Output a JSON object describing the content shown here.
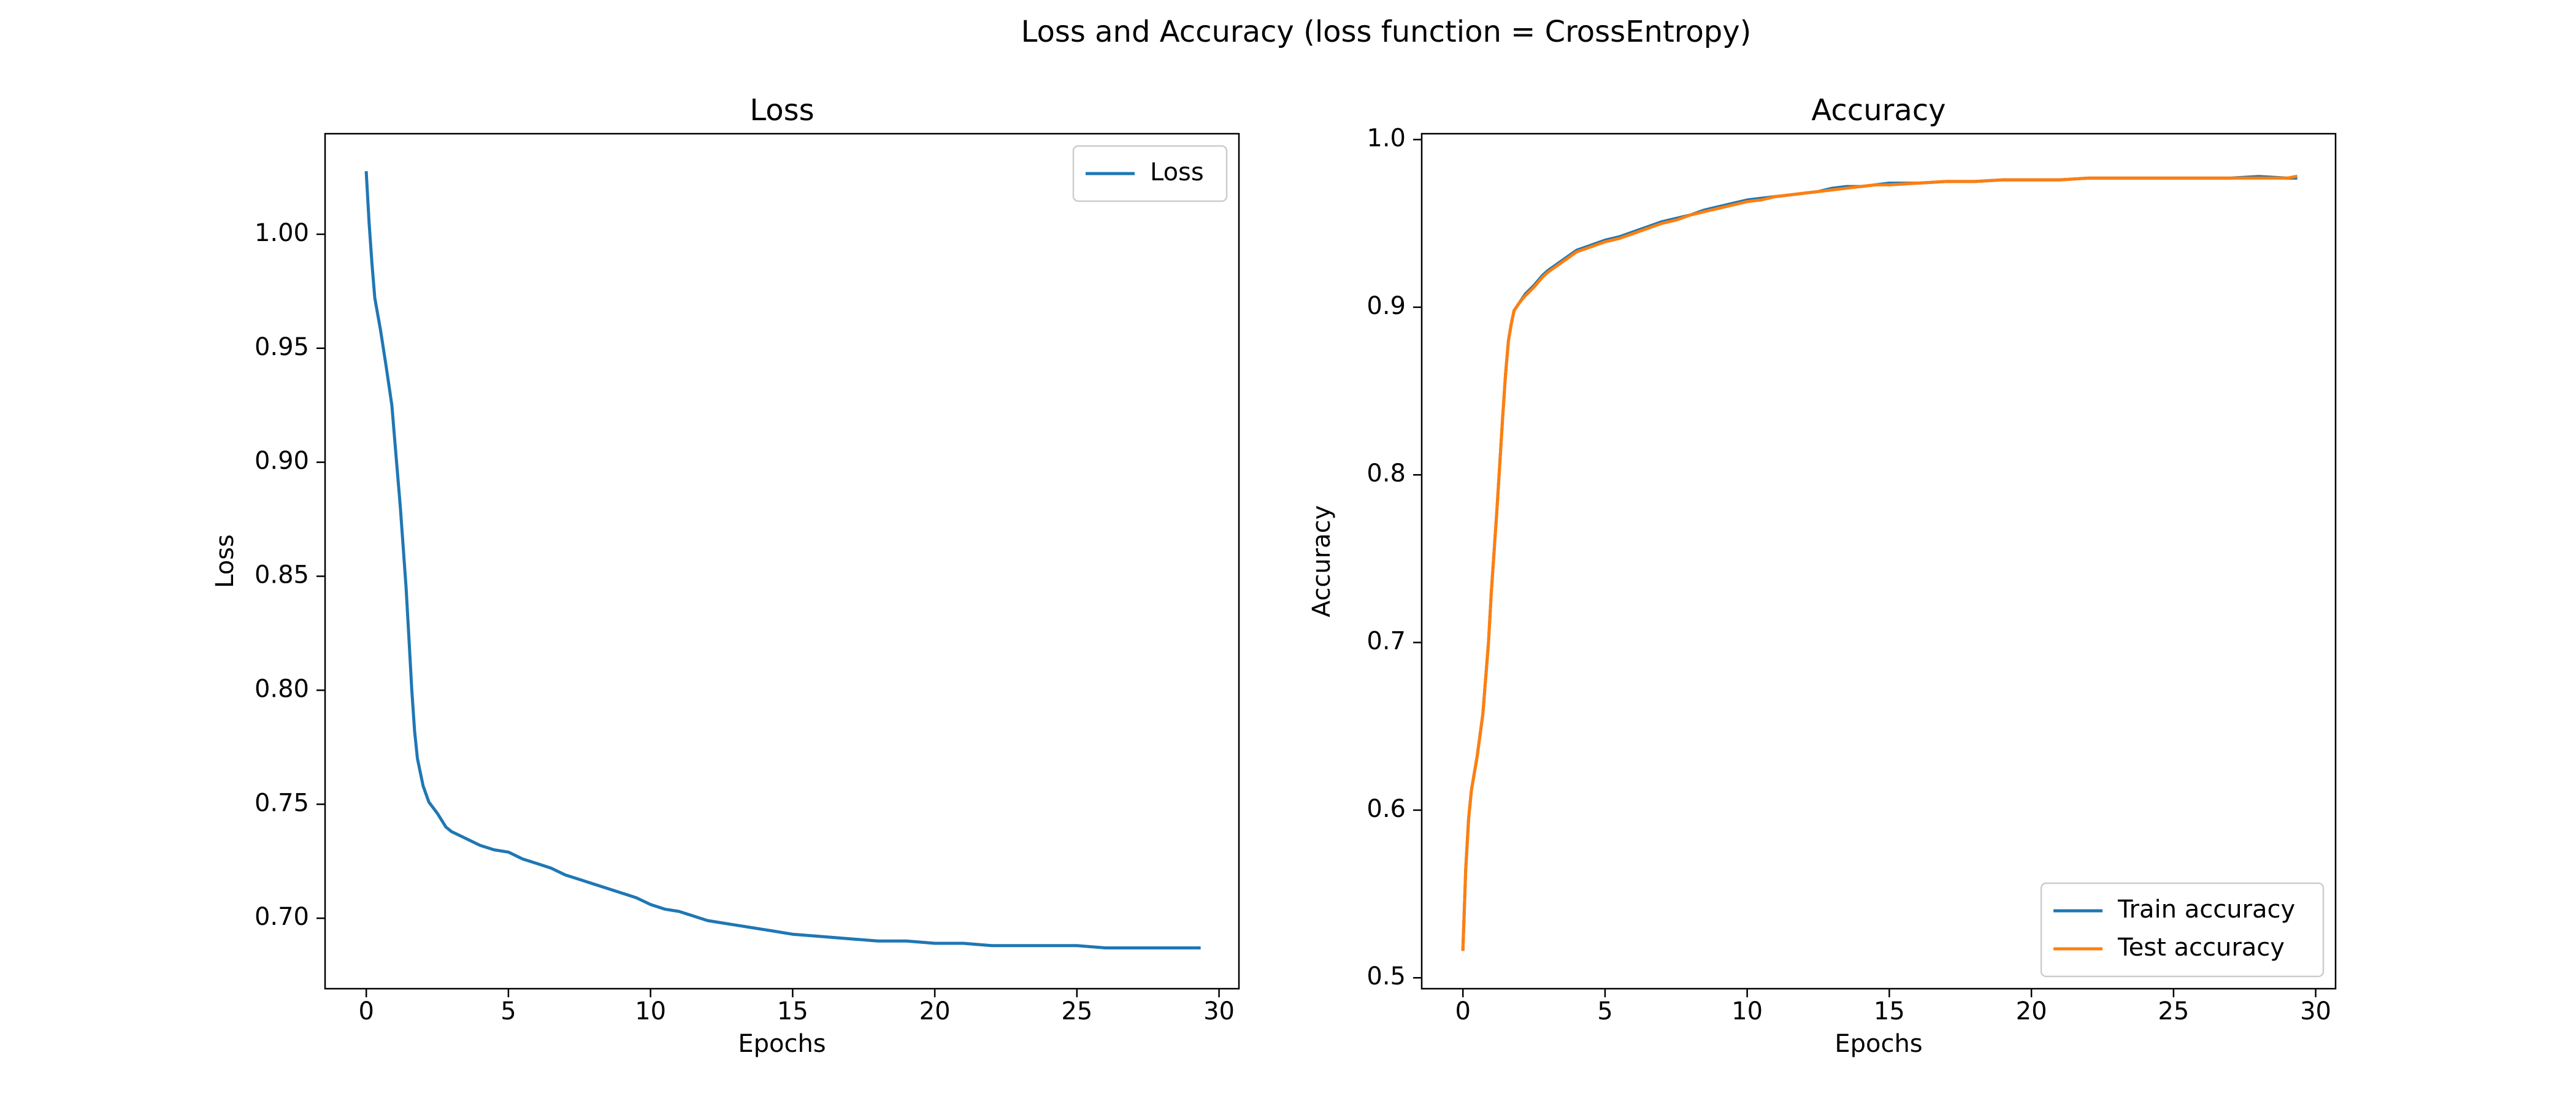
{
  "figure": {
    "suptitle": "Loss and Accuracy (loss function = CrossEntropy)"
  },
  "colors": {
    "series1": "#1f77b4",
    "series2": "#ff7f0e",
    "axes": "#000000",
    "background": "#ffffff"
  },
  "chart_data": [
    {
      "type": "line",
      "title": "Loss",
      "xlabel": "Epochs",
      "ylabel": "Loss",
      "xlim": [
        -1.45,
        30.7
      ],
      "ylim": [
        0.6691,
        1.0441
      ],
      "xticks": [
        0,
        5,
        10,
        15,
        20,
        25,
        30
      ],
      "yticks": [
        0.7,
        0.75,
        0.8,
        0.85,
        0.9,
        0.95,
        1.0
      ],
      "ytick_labels": [
        "0.70",
        "0.75",
        "0.80",
        "0.85",
        "0.90",
        "0.95",
        "1.00"
      ],
      "grid": false,
      "legend": "upper right",
      "series": [
        {
          "name": "Loss",
          "color": "#1f77b4",
          "x": [
            0,
            0.1,
            0.2,
            0.3,
            0.5,
            0.7,
            0.9,
            1.0,
            1.2,
            1.4,
            1.5,
            1.6,
            1.7,
            1.8,
            2.0,
            2.2,
            2.5,
            2.8,
            3.0,
            3.5,
            4.0,
            4.5,
            5.0,
            5.5,
            6.0,
            6.5,
            7.0,
            7.5,
            8.0,
            8.5,
            9.0,
            9.5,
            10.0,
            10.5,
            11.0,
            11.5,
            12.0,
            12.5,
            13.0,
            13.5,
            14.0,
            14.5,
            15.0,
            16.0,
            17.0,
            18.0,
            19.0,
            20.0,
            21.0,
            22.0,
            23.0,
            24.0,
            25.0,
            26.0,
            27.0,
            28.0,
            29.0,
            29.3
          ],
          "y": [
            1.027,
            1.005,
            0.987,
            0.972,
            0.958,
            0.942,
            0.925,
            0.91,
            0.88,
            0.845,
            0.823,
            0.8,
            0.782,
            0.77,
            0.758,
            0.751,
            0.746,
            0.74,
            0.738,
            0.735,
            0.732,
            0.73,
            0.729,
            0.726,
            0.724,
            0.722,
            0.719,
            0.717,
            0.715,
            0.713,
            0.711,
            0.709,
            0.706,
            0.704,
            0.703,
            0.701,
            0.699,
            0.698,
            0.697,
            0.696,
            0.695,
            0.694,
            0.693,
            0.692,
            0.691,
            0.69,
            0.69,
            0.689,
            0.689,
            0.688,
            0.688,
            0.688,
            0.688,
            0.687,
            0.687,
            0.687,
            0.687,
            0.687
          ]
        }
      ]
    },
    {
      "type": "line",
      "title": "Accuracy",
      "xlabel": "Epochs",
      "ylabel": "Accuracy",
      "xlim": [
        -1.45,
        30.7
      ],
      "ylim": [
        0.4935,
        1.0035
      ],
      "xticks": [
        0,
        5,
        10,
        15,
        20,
        25,
        30
      ],
      "yticks": [
        0.5,
        0.6,
        0.7,
        0.8,
        0.9,
        1.0
      ],
      "ytick_labels": [
        "0.5",
        "0.6",
        "0.7",
        "0.8",
        "0.9",
        "1.0"
      ],
      "grid": false,
      "legend": "lower right",
      "series": [
        {
          "name": "Train accuracy",
          "color": "#1f77b4",
          "x": [
            0,
            0.1,
            0.2,
            0.3,
            0.5,
            0.7,
            0.9,
            1.0,
            1.2,
            1.4,
            1.5,
            1.6,
            1.7,
            1.8,
            2.0,
            2.2,
            2.5,
            2.8,
            3.0,
            3.5,
            4.0,
            4.5,
            5.0,
            5.5,
            6.0,
            6.5,
            7.0,
            7.5,
            8.0,
            8.5,
            9.0,
            9.5,
            10.0,
            10.5,
            11.0,
            11.5,
            12.0,
            12.5,
            13.0,
            13.5,
            14.0,
            14.5,
            15.0,
            16.0,
            17.0,
            18.0,
            19.0,
            20.0,
            21.0,
            22.0,
            23.0,
            24.0,
            25.0,
            26.0,
            27.0,
            28.0,
            29.0,
            29.3
          ],
          "y": [
            0.517,
            0.565,
            0.595,
            0.612,
            0.632,
            0.657,
            0.7,
            0.73,
            0.78,
            0.835,
            0.86,
            0.88,
            0.89,
            0.898,
            0.903,
            0.908,
            0.913,
            0.919,
            0.922,
            0.928,
            0.934,
            0.937,
            0.94,
            0.942,
            0.945,
            0.948,
            0.951,
            0.953,
            0.955,
            0.958,
            0.96,
            0.962,
            0.964,
            0.965,
            0.966,
            0.967,
            0.968,
            0.969,
            0.971,
            0.972,
            0.972,
            0.973,
            0.974,
            0.974,
            0.975,
            0.975,
            0.976,
            0.976,
            0.976,
            0.977,
            0.977,
            0.977,
            0.977,
            0.977,
            0.977,
            0.978,
            0.977,
            0.977
          ]
        },
        {
          "name": "Test accuracy",
          "color": "#ff7f0e",
          "x": [
            0,
            0.1,
            0.2,
            0.3,
            0.5,
            0.7,
            0.9,
            1.0,
            1.2,
            1.4,
            1.5,
            1.6,
            1.7,
            1.8,
            2.0,
            2.2,
            2.5,
            2.8,
            3.0,
            3.5,
            4.0,
            4.5,
            5.0,
            5.5,
            6.0,
            6.5,
            7.0,
            7.5,
            8.0,
            8.5,
            9.0,
            9.5,
            10.0,
            10.5,
            11.0,
            11.5,
            12.0,
            12.5,
            13.0,
            13.5,
            14.0,
            14.5,
            15.0,
            16.0,
            17.0,
            18.0,
            19.0,
            20.0,
            21.0,
            22.0,
            23.0,
            24.0,
            25.0,
            26.0,
            27.0,
            28.0,
            29.0,
            29.3
          ],
          "y": [
            0.517,
            0.565,
            0.595,
            0.612,
            0.632,
            0.657,
            0.7,
            0.73,
            0.78,
            0.835,
            0.86,
            0.88,
            0.89,
            0.898,
            0.903,
            0.907,
            0.912,
            0.918,
            0.921,
            0.927,
            0.933,
            0.936,
            0.939,
            0.941,
            0.944,
            0.947,
            0.95,
            0.952,
            0.955,
            0.957,
            0.959,
            0.961,
            0.963,
            0.964,
            0.966,
            0.967,
            0.968,
            0.969,
            0.97,
            0.971,
            0.972,
            0.973,
            0.973,
            0.974,
            0.975,
            0.975,
            0.976,
            0.976,
            0.976,
            0.977,
            0.977,
            0.977,
            0.977,
            0.977,
            0.977,
            0.977,
            0.977,
            0.978
          ]
        }
      ]
    }
  ]
}
